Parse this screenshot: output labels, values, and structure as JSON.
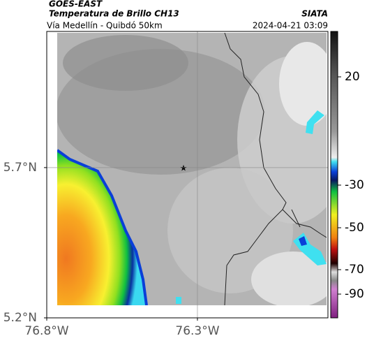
{
  "header": {
    "source": "GOES-EAST",
    "title": "Temperatura de Brillo CH13",
    "brand": "SIATA",
    "subtitle": "Vía Medellín - Quibdó 50km",
    "timestamp": "2024-04-21 03:09"
  },
  "map": {
    "xlim": [
      -76.8,
      -75.867
    ],
    "ylim": [
      5.2,
      6.153
    ],
    "xticks": [
      {
        "value": -76.8,
        "label": "76.8°W"
      },
      {
        "value": -76.3,
        "label": "76.3°W"
      }
    ],
    "yticks": [
      {
        "value": 5.2,
        "label": "5.2°N"
      },
      {
        "value": 5.7,
        "label": "5.7°N"
      }
    ],
    "grid": true
  },
  "colorbar": {
    "ticks": [
      20,
      -30,
      -50,
      -70,
      -90
    ]
  }
}
